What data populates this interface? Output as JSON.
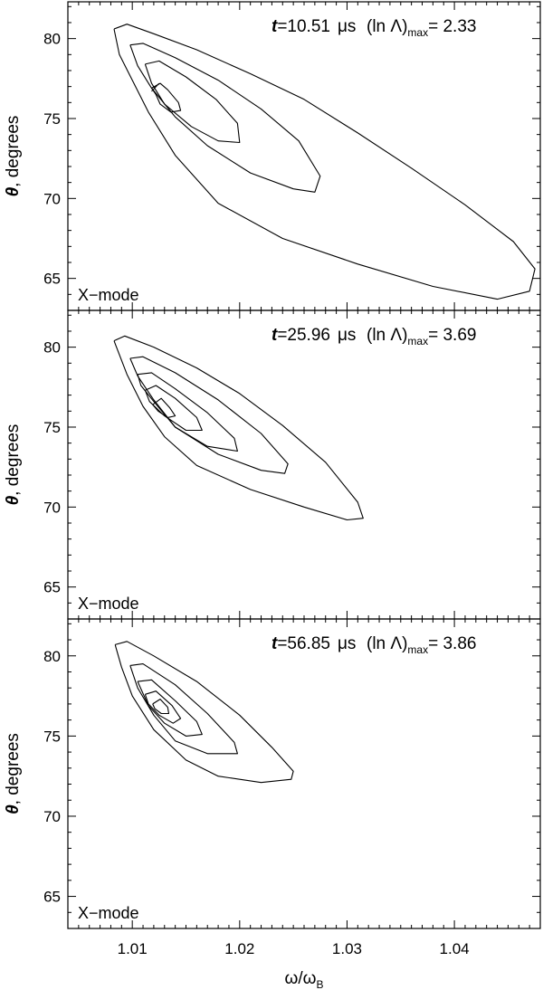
{
  "chart_data": [
    {
      "type": "contour",
      "time_label": "t",
      "time_value": "=10.51",
      "time_unit": "μs",
      "lambda_label_prefix": "(ln Λ)",
      "lambda_label_sub": "max",
      "lambda_value": "= 2.33",
      "mode_label": "X−mode",
      "ylabel_symbol": "θ",
      "ylabel_text": ", degrees",
      "xlim": [
        1.004,
        1.048
      ],
      "ylim": [
        63.0,
        82.3
      ],
      "yticks": [
        65,
        70,
        75,
        80
      ],
      "contours": [
        [
          [
            1.0083,
            80.6
          ],
          [
            1.0095,
            80.9
          ],
          [
            1.012,
            80.3
          ],
          [
            1.016,
            79.3
          ],
          [
            1.021,
            77.8
          ],
          [
            1.026,
            76.2
          ],
          [
            1.031,
            74.1
          ],
          [
            1.036,
            71.9
          ],
          [
            1.041,
            69.6
          ],
          [
            1.0455,
            67.3
          ],
          [
            1.0475,
            65.6
          ],
          [
            1.047,
            64.2
          ],
          [
            1.044,
            63.7
          ],
          [
            1.038,
            64.5
          ],
          [
            1.031,
            65.9
          ],
          [
            1.024,
            67.5
          ],
          [
            1.018,
            69.7
          ],
          [
            1.014,
            72.7
          ],
          [
            1.0115,
            75.4
          ],
          [
            1.01,
            77.4
          ],
          [
            1.0088,
            79.0
          ],
          [
            1.0083,
            80.6
          ]
        ],
        [
          [
            1.0098,
            79.6
          ],
          [
            1.011,
            79.7
          ],
          [
            1.014,
            78.8
          ],
          [
            1.018,
            77.4
          ],
          [
            1.022,
            75.6
          ],
          [
            1.0255,
            73.6
          ],
          [
            1.0275,
            71.4
          ],
          [
            1.027,
            70.4
          ],
          [
            1.025,
            70.6
          ],
          [
            1.021,
            71.6
          ],
          [
            1.017,
            73.3
          ],
          [
            1.014,
            75.1
          ],
          [
            1.0118,
            76.9
          ],
          [
            1.0105,
            78.3
          ],
          [
            1.0098,
            79.6
          ]
        ],
        [
          [
            1.0112,
            78.4
          ],
          [
            1.0125,
            78.6
          ],
          [
            1.015,
            77.6
          ],
          [
            1.0178,
            76.2
          ],
          [
            1.0198,
            74.7
          ],
          [
            1.02,
            73.5
          ],
          [
            1.018,
            73.6
          ],
          [
            1.0155,
            74.5
          ],
          [
            1.013,
            75.9
          ],
          [
            1.0118,
            77.2
          ],
          [
            1.0112,
            78.4
          ]
        ],
        [
          [
            1.0118,
            76.9
          ],
          [
            1.0126,
            77.2
          ],
          [
            1.0133,
            76.8
          ],
          [
            1.0143,
            76.0
          ],
          [
            1.0145,
            75.5
          ],
          [
            1.0136,
            75.4
          ],
          [
            1.0126,
            75.9
          ],
          [
            1.0122,
            76.5
          ],
          [
            1.0118,
            76.9
          ]
        ],
        [
          [
            1.0118,
            76.7
          ],
          [
            1.0125,
            77.2
          ]
        ]
      ]
    },
    {
      "type": "contour",
      "time_label": "t",
      "time_value": "=25.96",
      "time_unit": "μs",
      "lambda_label_prefix": "(ln Λ)",
      "lambda_label_sub": "max",
      "lambda_value": "= 3.69",
      "mode_label": "X−mode",
      "ylabel_symbol": "θ",
      "ylabel_text": ", degrees",
      "xlim": [
        1.004,
        1.048
      ],
      "ylim": [
        63.0,
        82.3
      ],
      "yticks": [
        65,
        70,
        75,
        80
      ],
      "contours": [
        [
          [
            1.0083,
            80.4
          ],
          [
            1.0093,
            80.7
          ],
          [
            1.012,
            80.0
          ],
          [
            1.016,
            78.7
          ],
          [
            1.02,
            77.1
          ],
          [
            1.024,
            75.1
          ],
          [
            1.028,
            72.8
          ],
          [
            1.031,
            70.3
          ],
          [
            1.0315,
            69.3
          ],
          [
            1.03,
            69.2
          ],
          [
            1.026,
            70.0
          ],
          [
            1.021,
            71.1
          ],
          [
            1.016,
            72.6
          ],
          [
            1.013,
            74.4
          ],
          [
            1.011,
            76.3
          ],
          [
            1.0095,
            78.3
          ],
          [
            1.0083,
            80.4
          ]
        ],
        [
          [
            1.0098,
            79.3
          ],
          [
            1.011,
            79.4
          ],
          [
            1.014,
            78.4
          ],
          [
            1.018,
            76.7
          ],
          [
            1.022,
            74.6
          ],
          [
            1.0245,
            72.7
          ],
          [
            1.0242,
            72.1
          ],
          [
            1.022,
            72.3
          ],
          [
            1.018,
            73.3
          ],
          [
            1.014,
            75.0
          ],
          [
            1.012,
            76.7
          ],
          [
            1.0105,
            78.2
          ],
          [
            1.0098,
            79.3
          ]
        ],
        [
          [
            1.0105,
            78.3
          ],
          [
            1.0118,
            78.4
          ],
          [
            1.014,
            77.4
          ],
          [
            1.017,
            75.9
          ],
          [
            1.0195,
            74.3
          ],
          [
            1.0198,
            73.5
          ],
          [
            1.017,
            73.8
          ],
          [
            1.014,
            75.0
          ],
          [
            1.012,
            76.6
          ],
          [
            1.0108,
            77.6
          ],
          [
            1.0105,
            78.3
          ]
        ],
        [
          [
            1.0112,
            77.3
          ],
          [
            1.0122,
            77.6
          ],
          [
            1.014,
            76.8
          ],
          [
            1.016,
            75.6
          ],
          [
            1.0165,
            74.8
          ],
          [
            1.015,
            74.8
          ],
          [
            1.013,
            75.7
          ],
          [
            1.0116,
            76.6
          ],
          [
            1.0112,
            77.3
          ]
        ],
        [
          [
            1.0119,
            76.4
          ],
          [
            1.0127,
            76.8
          ],
          [
            1.0135,
            76.2
          ],
          [
            1.014,
            75.7
          ],
          [
            1.0133,
            75.6
          ],
          [
            1.0124,
            76.0
          ],
          [
            1.0119,
            76.4
          ]
        ]
      ]
    },
    {
      "type": "contour",
      "time_label": "t",
      "time_value": "=56.85",
      "time_unit": "μs",
      "lambda_label_prefix": "(ln Λ)",
      "lambda_label_sub": "max",
      "lambda_value": "= 3.86",
      "mode_label": "X−mode",
      "ylabel_symbol": "θ",
      "ylabel_text": ", degrees",
      "xlabel_symbol": "ω/ω",
      "xlabel_sub": "B",
      "xlim": [
        1.004,
        1.048
      ],
      "ylim": [
        63.0,
        82.3
      ],
      "yticks": [
        65,
        70,
        75,
        80
      ],
      "xticks": [
        1.01,
        1.02,
        1.03,
        1.04
      ],
      "contours": [
        [
          [
            1.0084,
            80.7
          ],
          [
            1.0095,
            80.9
          ],
          [
            1.012,
            80.0
          ],
          [
            1.016,
            78.4
          ],
          [
            1.02,
            76.3
          ],
          [
            1.023,
            74.3
          ],
          [
            1.025,
            72.8
          ],
          [
            1.0248,
            72.3
          ],
          [
            1.022,
            72.1
          ],
          [
            1.018,
            72.5
          ],
          [
            1.015,
            73.5
          ],
          [
            1.012,
            75.4
          ],
          [
            1.01,
            77.5
          ],
          [
            1.009,
            79.3
          ],
          [
            1.0084,
            80.7
          ]
        ],
        [
          [
            1.0098,
            79.4
          ],
          [
            1.011,
            79.5
          ],
          [
            1.014,
            78.2
          ],
          [
            1.017,
            76.4
          ],
          [
            1.0195,
            74.6
          ],
          [
            1.0198,
            73.9
          ],
          [
            1.017,
            73.9
          ],
          [
            1.014,
            74.7
          ],
          [
            1.012,
            76.3
          ],
          [
            1.0105,
            78.0
          ],
          [
            1.0098,
            79.4
          ]
        ],
        [
          [
            1.0105,
            78.4
          ],
          [
            1.0118,
            78.5
          ],
          [
            1.014,
            77.2
          ],
          [
            1.016,
            75.9
          ],
          [
            1.0165,
            75.1
          ],
          [
            1.015,
            75.0
          ],
          [
            1.013,
            75.8
          ],
          [
            1.0115,
            76.9
          ],
          [
            1.0105,
            78.4
          ]
        ],
        [
          [
            1.0112,
            77.6
          ],
          [
            1.0122,
            77.8
          ],
          [
            1.0137,
            76.9
          ],
          [
            1.0145,
            76.1
          ],
          [
            1.0138,
            75.8
          ],
          [
            1.0125,
            76.3
          ],
          [
            1.0115,
            77.0
          ],
          [
            1.0112,
            77.6
          ]
        ],
        [
          [
            1.0119,
            77.0
          ],
          [
            1.0126,
            77.3
          ],
          [
            1.0133,
            76.8
          ],
          [
            1.0134,
            76.4
          ],
          [
            1.0127,
            76.4
          ],
          [
            1.0121,
            76.7
          ],
          [
            1.0119,
            77.0
          ]
        ]
      ]
    }
  ]
}
